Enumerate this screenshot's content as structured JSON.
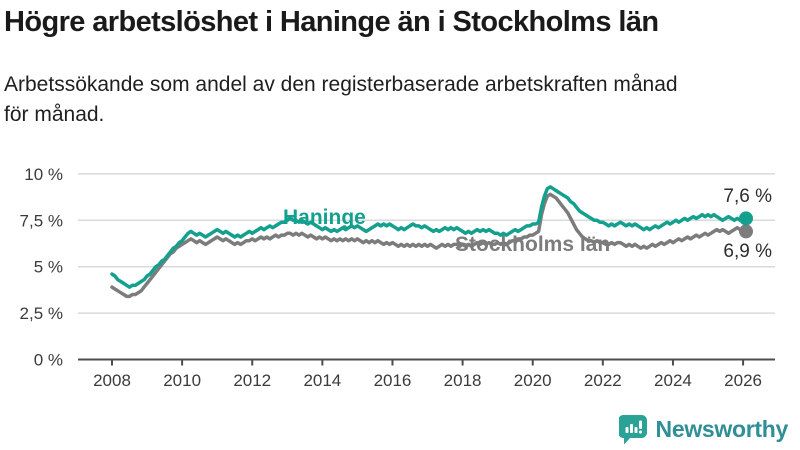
{
  "header": {
    "title": "Högre arbetslöshet i Haninge än i Stockholms län",
    "subtitle_lines": [
      "Arbetssökande som andel av den registerbaserade arbetskraften månad",
      "för månad."
    ]
  },
  "chart_data": {
    "type": "line",
    "title": "Högre arbetslöshet i Haninge än i Stockholms län",
    "subtitle": "Arbetssökande som andel av den registerbaserade arbetskraften månad för månad.",
    "unit": "%",
    "ylim": [
      0,
      10
    ],
    "grid": "horizontal",
    "x_start": {
      "year": 2008,
      "month": 1
    },
    "x_end": {
      "year": 2026,
      "month": 2
    },
    "x_interval": "monthly",
    "x_tick_labels": [
      "2008",
      "2010",
      "2012",
      "2014",
      "2016",
      "2018",
      "2020",
      "2022",
      "2024",
      "2026"
    ],
    "y_ticks": [
      {
        "value": 0,
        "label": "0 %"
      },
      {
        "value": 2.5,
        "label": "2,5 %"
      },
      {
        "value": 5,
        "label": "5 %"
      },
      {
        "value": 7.5,
        "label": "7,5 %"
      },
      {
        "value": 10,
        "label": "10 %"
      }
    ],
    "colors": {
      "grid": "#d9d9d9",
      "axis": "#4d4d4d",
      "tick_text": "#3b3b3b"
    },
    "series": [
      {
        "name": "Haninge",
        "color": "#14a08f",
        "end_label": "7,6 %",
        "end_value": 7.6,
        "values": [
          4.6,
          4.5,
          4.3,
          4.2,
          4.1,
          4.0,
          3.9,
          4.0,
          4.0,
          4.1,
          4.2,
          4.3,
          4.5,
          4.6,
          4.8,
          5.0,
          5.1,
          5.3,
          5.4,
          5.6,
          5.8,
          6.0,
          6.1,
          6.3,
          6.4,
          6.6,
          6.8,
          6.9,
          6.8,
          6.7,
          6.8,
          6.7,
          6.6,
          6.7,
          6.8,
          6.9,
          7.0,
          6.9,
          6.8,
          6.9,
          6.8,
          6.7,
          6.6,
          6.7,
          6.6,
          6.7,
          6.8,
          6.9,
          6.8,
          6.9,
          7.0,
          7.1,
          7.0,
          7.1,
          7.2,
          7.1,
          7.2,
          7.3,
          7.4,
          7.4,
          7.5,
          7.6,
          7.5,
          7.5,
          7.4,
          7.5,
          7.4,
          7.3,
          7.4,
          7.3,
          7.2,
          7.1,
          7.0,
          7.1,
          7.0,
          6.9,
          7.0,
          6.9,
          7.0,
          7.1,
          7.0,
          7.1,
          7.2,
          7.1,
          7.2,
          7.1,
          7.0,
          6.9,
          7.0,
          7.1,
          7.2,
          7.3,
          7.2,
          7.3,
          7.2,
          7.3,
          7.2,
          7.1,
          7.0,
          7.1,
          7.0,
          7.1,
          7.2,
          7.3,
          7.2,
          7.2,
          7.1,
          7.2,
          7.1,
          7.0,
          6.9,
          7.0,
          6.9,
          7.0,
          7.1,
          7.0,
          7.1,
          7.0,
          7.1,
          7.0,
          6.9,
          6.8,
          6.9,
          6.8,
          6.9,
          7.0,
          6.9,
          7.0,
          6.9,
          7.0,
          6.9,
          6.8,
          6.8,
          6.7,
          6.8,
          6.7,
          6.8,
          6.9,
          7.0,
          6.9,
          7.0,
          7.1,
          7.2,
          7.2,
          7.3,
          7.3,
          7.4,
          8.2,
          8.8,
          9.2,
          9.3,
          9.2,
          9.1,
          9.0,
          8.9,
          8.8,
          8.7,
          8.5,
          8.4,
          8.2,
          8.0,
          7.9,
          7.8,
          7.7,
          7.6,
          7.5,
          7.5,
          7.4,
          7.4,
          7.3,
          7.2,
          7.3,
          7.2,
          7.3,
          7.4,
          7.3,
          7.2,
          7.3,
          7.2,
          7.3,
          7.2,
          7.1,
          7.0,
          7.1,
          7.0,
          7.1,
          7.2,
          7.1,
          7.2,
          7.3,
          7.4,
          7.3,
          7.4,
          7.5,
          7.4,
          7.5,
          7.6,
          7.5,
          7.6,
          7.7,
          7.6,
          7.7,
          7.8,
          7.7,
          7.8,
          7.7,
          7.8,
          7.7,
          7.6,
          7.5,
          7.6,
          7.7,
          7.6,
          7.5,
          7.6,
          7.5,
          7.5,
          7.6
        ]
      },
      {
        "name": "Stockholms län",
        "color": "#7c7c7c",
        "end_label": "6,9 %",
        "end_value": 6.9,
        "values": [
          3.9,
          3.8,
          3.7,
          3.6,
          3.5,
          3.4,
          3.4,
          3.5,
          3.5,
          3.6,
          3.7,
          3.9,
          4.1,
          4.3,
          4.5,
          4.7,
          4.9,
          5.1,
          5.3,
          5.5,
          5.7,
          5.8,
          6.0,
          6.1,
          6.2,
          6.3,
          6.4,
          6.5,
          6.4,
          6.3,
          6.4,
          6.3,
          6.2,
          6.3,
          6.4,
          6.5,
          6.6,
          6.5,
          6.4,
          6.5,
          6.4,
          6.3,
          6.2,
          6.3,
          6.2,
          6.3,
          6.4,
          6.4,
          6.5,
          6.4,
          6.5,
          6.6,
          6.5,
          6.6,
          6.5,
          6.6,
          6.7,
          6.6,
          6.7,
          6.7,
          6.8,
          6.8,
          6.7,
          6.8,
          6.7,
          6.8,
          6.7,
          6.6,
          6.7,
          6.6,
          6.5,
          6.6,
          6.5,
          6.6,
          6.5,
          6.4,
          6.5,
          6.4,
          6.5,
          6.4,
          6.5,
          6.4,
          6.5,
          6.4,
          6.5,
          6.4,
          6.3,
          6.4,
          6.3,
          6.4,
          6.3,
          6.4,
          6.3,
          6.2,
          6.3,
          6.2,
          6.3,
          6.2,
          6.1,
          6.2,
          6.1,
          6.2,
          6.1,
          6.2,
          6.1,
          6.2,
          6.1,
          6.2,
          6.1,
          6.2,
          6.1,
          6.0,
          6.1,
          6.2,
          6.1,
          6.2,
          6.1,
          6.2,
          6.2,
          6.1,
          6.2,
          6.1,
          6.2,
          6.1,
          6.2,
          6.3,
          6.2,
          6.3,
          6.2,
          6.3,
          6.2,
          6.2,
          6.3,
          6.2,
          6.3,
          6.2,
          6.3,
          6.4,
          6.4,
          6.5,
          6.5,
          6.6,
          6.6,
          6.7,
          6.7,
          6.8,
          6.9,
          7.8,
          8.4,
          8.8,
          8.9,
          8.8,
          8.7,
          8.5,
          8.3,
          8.1,
          7.9,
          7.6,
          7.3,
          7.0,
          6.8,
          6.6,
          6.5,
          6.4,
          6.4,
          6.3,
          6.4,
          6.3,
          6.3,
          6.2,
          6.2,
          6.3,
          6.2,
          6.3,
          6.3,
          6.2,
          6.1,
          6.2,
          6.1,
          6.2,
          6.1,
          6.0,
          6.1,
          6.0,
          6.1,
          6.2,
          6.1,
          6.2,
          6.3,
          6.2,
          6.3,
          6.4,
          6.3,
          6.4,
          6.5,
          6.4,
          6.5,
          6.6,
          6.5,
          6.6,
          6.7,
          6.6,
          6.7,
          6.8,
          6.7,
          6.8,
          6.9,
          7.0,
          6.9,
          7.0,
          6.9,
          6.8,
          6.9,
          7.0,
          7.1,
          7.0,
          6.9,
          6.9
        ]
      }
    ]
  },
  "footer": {
    "brand": "Newsworthy",
    "logo_icon": "bar-chart-speech-bubble-icon",
    "brand_color": "#2f8e96",
    "icon_color": "#2aa295"
  }
}
